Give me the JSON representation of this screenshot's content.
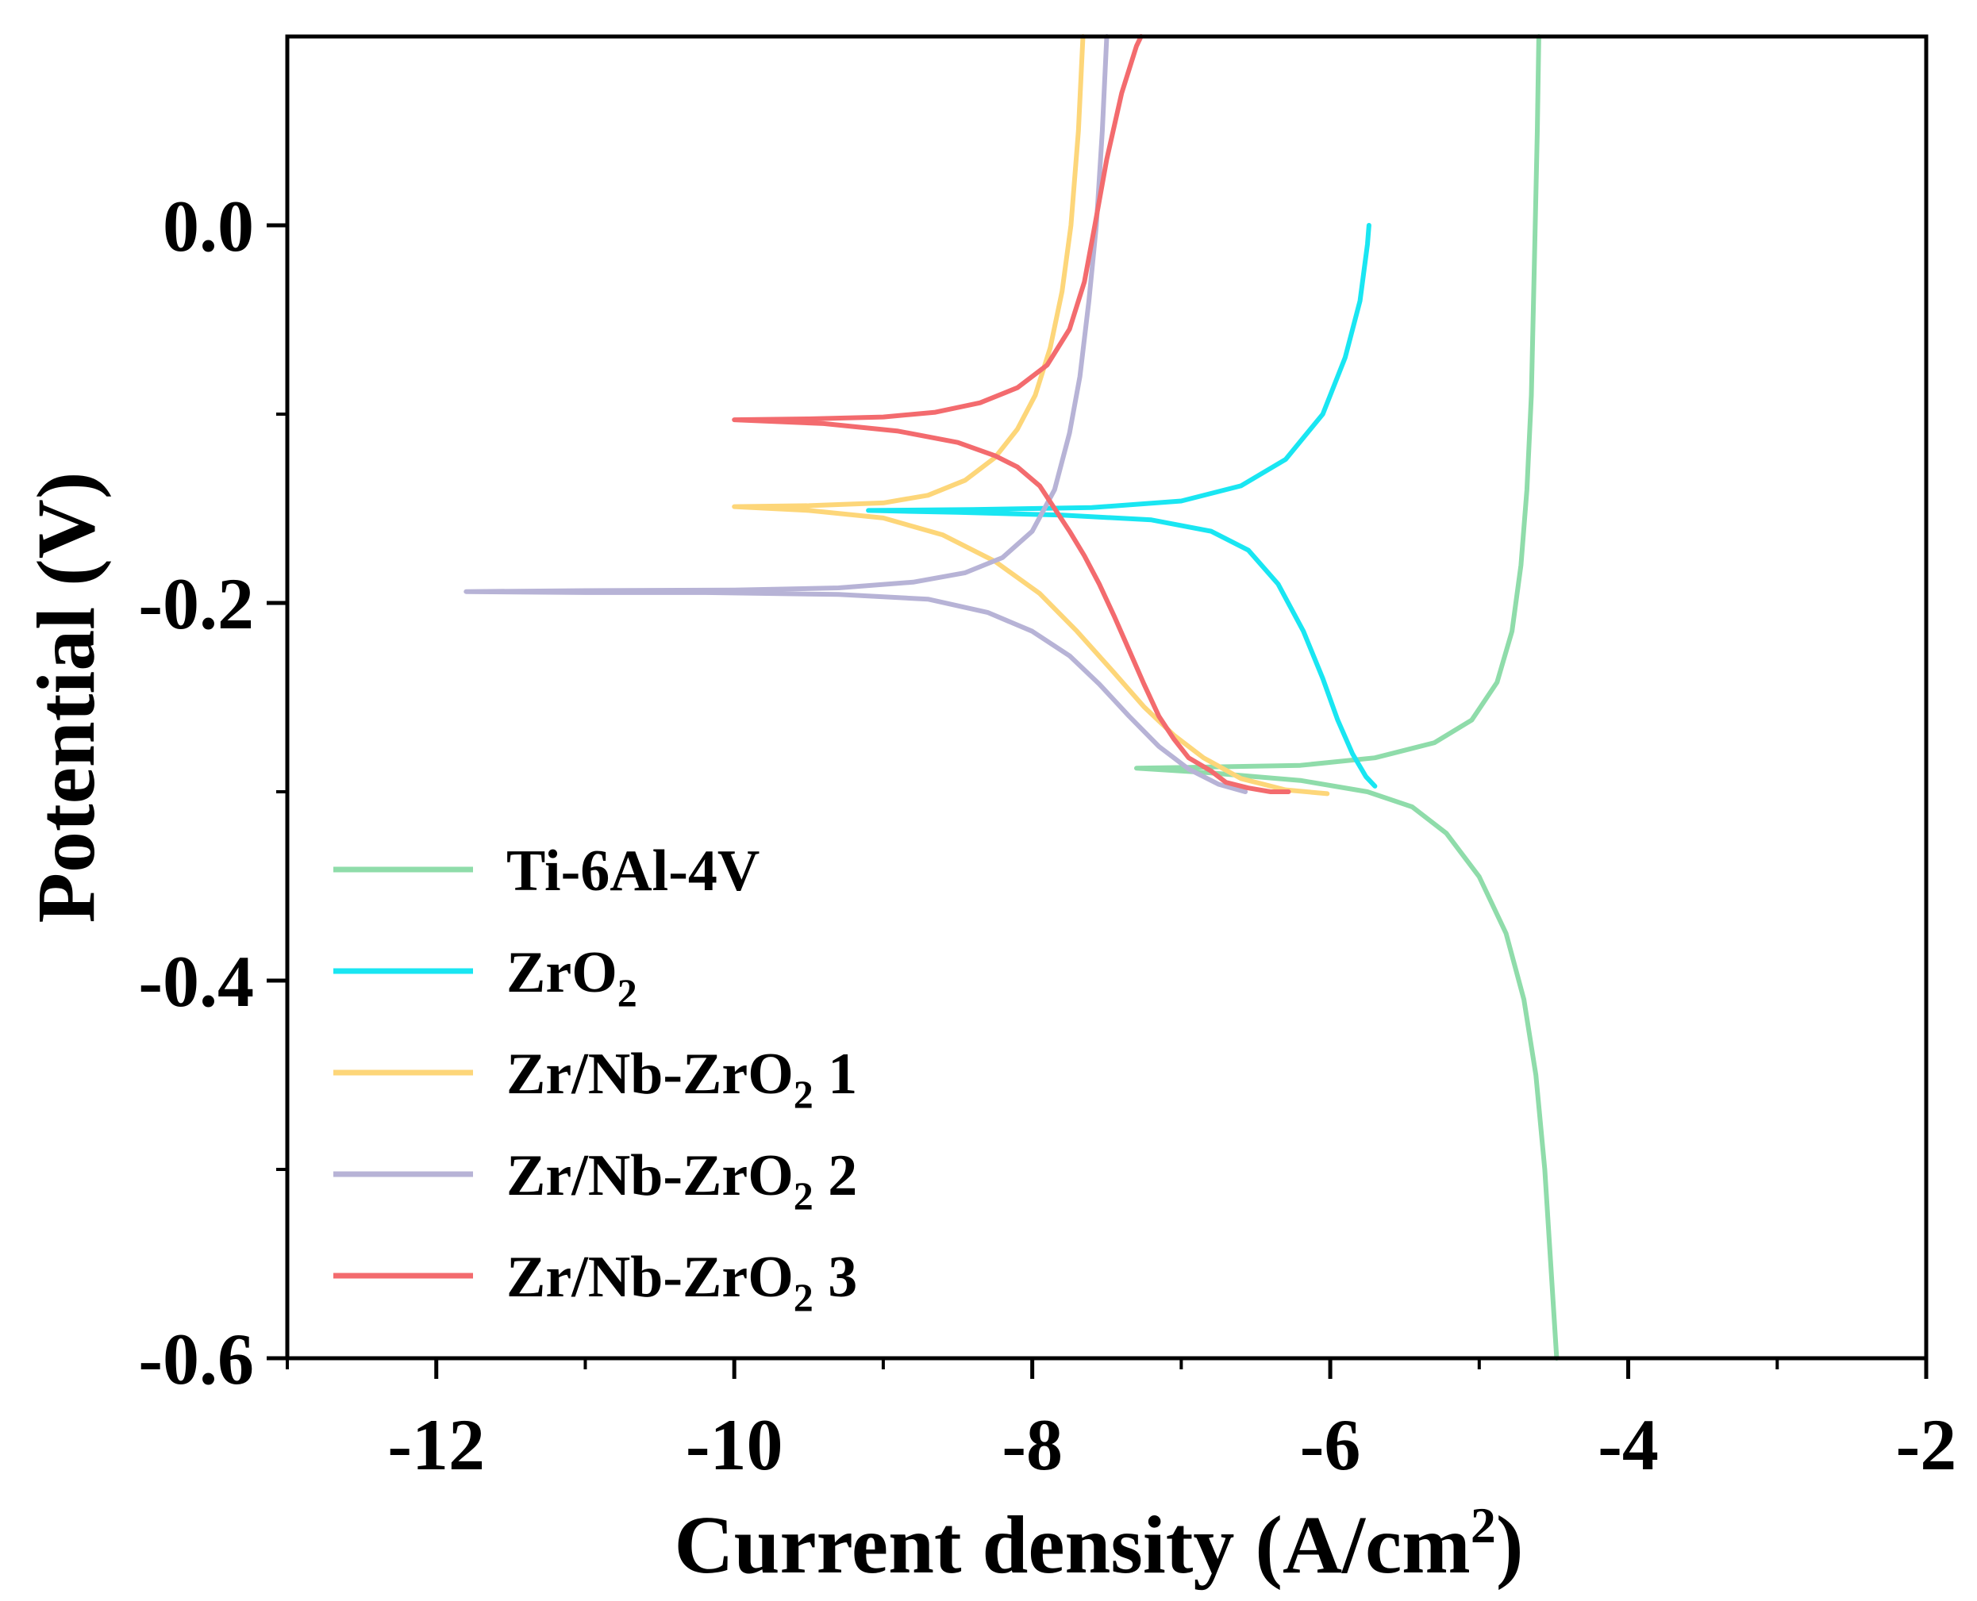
{
  "chart_data": {
    "type": "line",
    "xlabel": {
      "text": "Current density (A/cm",
      "sup": "2",
      "tail": ")"
    },
    "ylabel": "Potential (V)",
    "xlim": [
      -13,
      -2
    ],
    "ylim": [
      -0.6,
      0.1
    ],
    "xticks": [
      "-12",
      "-10",
      "-8",
      "-6",
      "-4",
      "-2"
    ],
    "xtick_values": [
      -12,
      -10,
      -8,
      -6,
      -4,
      -2
    ],
    "yticks": [
      "0.0",
      "-0.2",
      "-0.4",
      "-0.6"
    ],
    "ytick_values": [
      0.0,
      -0.2,
      -0.4,
      -0.6
    ],
    "legend_position": "lower-left",
    "series": [
      {
        "key": "ti",
        "name": "Ti-6Al-4V",
        "label_main": "Ti-6Al-4V",
        "label_sub": "",
        "label_tail": "",
        "color": "#8fdcaa",
        "points": [
          [
            -4.48,
            -0.6
          ],
          [
            -4.52,
            -0.55
          ],
          [
            -4.56,
            -0.5
          ],
          [
            -4.62,
            -0.45
          ],
          [
            -4.7,
            -0.41
          ],
          [
            -4.82,
            -0.375
          ],
          [
            -5.0,
            -0.345
          ],
          [
            -5.22,
            -0.322
          ],
          [
            -5.45,
            -0.308
          ],
          [
            -5.75,
            -0.3
          ],
          [
            -6.2,
            -0.294
          ],
          [
            -6.8,
            -0.29
          ],
          [
            -7.3,
            -0.2875
          ],
          [
            -6.9,
            -0.287
          ],
          [
            -6.2,
            -0.286
          ],
          [
            -5.7,
            -0.282
          ],
          [
            -5.3,
            -0.274
          ],
          [
            -5.05,
            -0.262
          ],
          [
            -4.88,
            -0.242
          ],
          [
            -4.78,
            -0.215
          ],
          [
            -4.72,
            -0.18
          ],
          [
            -4.68,
            -0.14
          ],
          [
            -4.65,
            -0.09
          ],
          [
            -4.63,
            -0.02
          ],
          [
            -4.61,
            0.05
          ],
          [
            -4.6,
            0.1
          ]
        ]
      },
      {
        "key": "zro2",
        "name": "ZrO2",
        "label_main": "ZrO",
        "label_sub": "2",
        "label_tail": "",
        "color": "#19e6f2",
        "points": [
          [
            -5.7,
            -0.297
          ],
          [
            -5.76,
            -0.292
          ],
          [
            -5.85,
            -0.28
          ],
          [
            -5.95,
            -0.262
          ],
          [
            -6.05,
            -0.24
          ],
          [
            -6.18,
            -0.215
          ],
          [
            -6.35,
            -0.19
          ],
          [
            -6.55,
            -0.172
          ],
          [
            -6.8,
            -0.162
          ],
          [
            -7.2,
            -0.156
          ],
          [
            -7.8,
            -0.1535
          ],
          [
            -8.5,
            -0.152
          ],
          [
            -9.1,
            -0.151
          ],
          [
            -8.4,
            -0.1505
          ],
          [
            -7.6,
            -0.1495
          ],
          [
            -7.0,
            -0.146
          ],
          [
            -6.6,
            -0.138
          ],
          [
            -6.3,
            -0.124
          ],
          [
            -6.05,
            -0.1
          ],
          [
            -5.9,
            -0.07
          ],
          [
            -5.8,
            -0.04
          ],
          [
            -5.75,
            -0.01
          ],
          [
            -5.74,
            0.0
          ]
        ]
      },
      {
        "key": "zn1",
        "name": "Zr/Nb-ZrO2 1",
        "label_main": "Zr/Nb-ZrO",
        "label_sub": "2",
        "label_tail": " 1",
        "color": "#fdd679",
        "points": [
          [
            -6.02,
            -0.301
          ],
          [
            -6.3,
            -0.299
          ],
          [
            -6.6,
            -0.293
          ],
          [
            -6.85,
            -0.282
          ],
          [
            -7.05,
            -0.27
          ],
          [
            -7.25,
            -0.255
          ],
          [
            -7.45,
            -0.237
          ],
          [
            -7.7,
            -0.215
          ],
          [
            -7.95,
            -0.195
          ],
          [
            -8.25,
            -0.178
          ],
          [
            -8.6,
            -0.164
          ],
          [
            -9.0,
            -0.155
          ],
          [
            -9.5,
            -0.151
          ],
          [
            -10.0,
            -0.149
          ],
          [
            -9.5,
            -0.1485
          ],
          [
            -9.0,
            -0.147
          ],
          [
            -8.7,
            -0.143
          ],
          [
            -8.45,
            -0.135
          ],
          [
            -8.25,
            -0.123
          ],
          [
            -8.1,
            -0.108
          ],
          [
            -7.98,
            -0.09
          ],
          [
            -7.88,
            -0.065
          ],
          [
            -7.8,
            -0.035
          ],
          [
            -7.74,
            0.0
          ],
          [
            -7.69,
            0.05
          ],
          [
            -7.66,
            0.1
          ]
        ]
      },
      {
        "key": "zn2",
        "name": "Zr/Nb-ZrO2 2",
        "label_main": "Zr/Nb-ZrO",
        "label_sub": "2",
        "label_tail": " 2",
        "color": "#b7b3d6",
        "points": [
          [
            -6.57,
            -0.3
          ],
          [
            -6.75,
            -0.296
          ],
          [
            -6.95,
            -0.288
          ],
          [
            -7.15,
            -0.276
          ],
          [
            -7.35,
            -0.26
          ],
          [
            -7.55,
            -0.243
          ],
          [
            -7.75,
            -0.228
          ],
          [
            -8.0,
            -0.215
          ],
          [
            -8.3,
            -0.205
          ],
          [
            -8.7,
            -0.198
          ],
          [
            -9.3,
            -0.1955
          ],
          [
            -10.2,
            -0.1945
          ],
          [
            -11.0,
            -0.1945
          ],
          [
            -11.8,
            -0.194
          ],
          [
            -11.0,
            -0.1935
          ],
          [
            -10.0,
            -0.1932
          ],
          [
            -9.3,
            -0.192
          ],
          [
            -8.8,
            -0.189
          ],
          [
            -8.45,
            -0.184
          ],
          [
            -8.2,
            -0.176
          ],
          [
            -8.0,
            -0.162
          ],
          [
            -7.85,
            -0.14
          ],
          [
            -7.75,
            -0.11
          ],
          [
            -7.68,
            -0.08
          ],
          [
            -7.62,
            -0.04
          ],
          [
            -7.57,
            0.0
          ],
          [
            -7.53,
            0.05
          ],
          [
            -7.5,
            0.1
          ]
        ]
      },
      {
        "key": "zn3",
        "name": "Zr/Nb-ZrO2 3",
        "label_main": "Zr/Nb-ZrO",
        "label_sub": "2",
        "label_tail": " 3",
        "color": "#f36b6e",
        "points": [
          [
            -6.28,
            -0.3
          ],
          [
            -6.4,
            -0.3
          ],
          [
            -6.55,
            -0.298
          ],
          [
            -6.7,
            -0.295
          ],
          [
            -6.8,
            -0.289
          ],
          [
            -6.95,
            -0.282
          ],
          [
            -7.05,
            -0.272
          ],
          [
            -7.15,
            -0.26
          ],
          [
            -7.25,
            -0.243
          ],
          [
            -7.35,
            -0.225
          ],
          [
            -7.45,
            -0.207
          ],
          [
            -7.55,
            -0.19
          ],
          [
            -7.65,
            -0.175
          ],
          [
            -7.75,
            -0.162
          ],
          [
            -7.85,
            -0.15
          ],
          [
            -7.95,
            -0.138
          ],
          [
            -8.1,
            -0.128
          ],
          [
            -8.25,
            -0.122
          ],
          [
            -8.5,
            -0.115
          ],
          [
            -8.9,
            -0.109
          ],
          [
            -9.4,
            -0.105
          ],
          [
            -10.0,
            -0.103
          ],
          [
            -9.5,
            -0.1025
          ],
          [
            -9.0,
            -0.1015
          ],
          [
            -8.65,
            -0.099
          ],
          [
            -8.35,
            -0.094
          ],
          [
            -8.1,
            -0.086
          ],
          [
            -7.9,
            -0.074
          ],
          [
            -7.75,
            -0.055
          ],
          [
            -7.65,
            -0.03
          ],
          [
            -7.58,
            0.0
          ],
          [
            -7.5,
            0.035
          ],
          [
            -7.4,
            0.07
          ],
          [
            -7.3,
            0.095
          ],
          [
            -7.27,
            0.1
          ]
        ]
      }
    ]
  }
}
